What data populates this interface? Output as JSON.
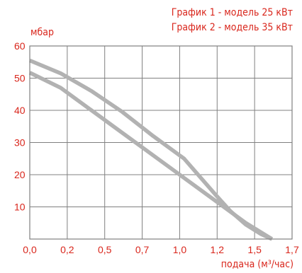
{
  "legend": [
    "График 1 - модель 25 кВт",
    "График 2 - модель 35 кВт"
  ],
  "colors": {
    "text": "#d9261c",
    "curve": "#b2b2b2",
    "grid": "#808080"
  },
  "chart_data": {
    "type": "line",
    "ylabel": "мбар",
    "xlabel": "подача (м³/час)",
    "xlim": [
      0,
      1.7
    ],
    "ylim": [
      0,
      60
    ],
    "x_ticks": [
      "0,0",
      "0,2",
      "0,5",
      "0,7",
      "1,0",
      "1,2",
      "1,5",
      "1,7"
    ],
    "y_ticks": [
      "10",
      "20",
      "30",
      "40",
      "50",
      "60"
    ],
    "grid": true,
    "legend_position": "top-right",
    "series": [
      {
        "name": "График 1",
        "x": [
          0,
          0.2,
          0.4,
          0.6,
          0.8,
          1.0,
          1.2,
          1.4,
          1.57
        ],
        "y": [
          51.7,
          47,
          40,
          33,
          26,
          19,
          12,
          5,
          0
        ]
      },
      {
        "name": "График 2",
        "x": [
          0,
          0.2,
          0.4,
          0.6,
          0.8,
          1.0,
          1.1,
          1.2,
          1.3,
          1.4,
          1.5,
          1.57
        ],
        "y": [
          55.5,
          51.5,
          46,
          39.5,
          32,
          25,
          19.5,
          14,
          8.7,
          4.5,
          1.5,
          0
        ]
      }
    ]
  }
}
